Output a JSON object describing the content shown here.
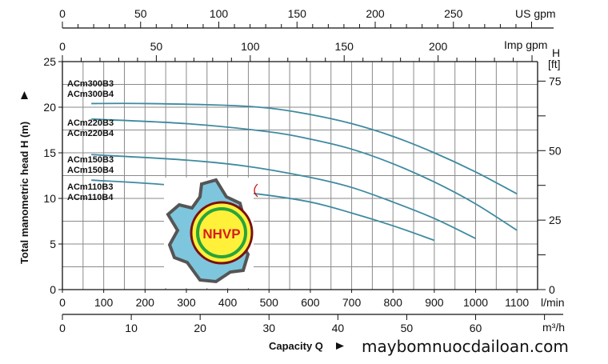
{
  "chart_data": {
    "type": "line",
    "title": "",
    "xlabel": "Capacity Q",
    "ylabel": "Total manometric head H (m)",
    "x_unit": "l/min",
    "xlim": [
      0,
      1150
    ],
    "ylim": [
      0,
      25
    ],
    "grid": true,
    "x_ticks": [
      0,
      100,
      200,
      300,
      400,
      500,
      600,
      700,
      800,
      900,
      1000,
      1100
    ],
    "y_ticks": [
      0,
      5,
      10,
      15,
      20,
      25
    ],
    "secondary_axes": {
      "us_gpm": {
        "label": "US gpm",
        "ticks": [
          0,
          50,
          100,
          150,
          200,
          250
        ]
      },
      "imp_gpm": {
        "label": "Imp gpm",
        "ticks": [
          0,
          50,
          100,
          150,
          200
        ]
      },
      "m3h": {
        "label": "m³/h",
        "ticks": [
          0,
          10,
          20,
          30,
          40,
          50,
          60
        ]
      },
      "ft": {
        "label_top": "H",
        "label_unit": "[ft]",
        "ticks": [
          0,
          25,
          50,
          75
        ]
      }
    },
    "series": [
      {
        "name": "ACm300B3 / ACm300B4",
        "labels": [
          "ACm300B3",
          "ACm300B4"
        ],
        "x": [
          70,
          200,
          400,
          500,
          600,
          700,
          800,
          900,
          1000,
          1100
        ],
        "y": [
          20.4,
          20.4,
          20.2,
          19.9,
          19.2,
          18.2,
          16.8,
          15.0,
          12.9,
          10.5
        ]
      },
      {
        "name": "ACm220B3 / ACm220B4",
        "labels": [
          "ACm220B3",
          "ACm220B4"
        ],
        "x": [
          70,
          300,
          500,
          600,
          700,
          800,
          900,
          1000,
          1100
        ],
        "y": [
          18.7,
          18.2,
          17.3,
          16.5,
          15.4,
          13.8,
          11.8,
          9.4,
          6.5
        ]
      },
      {
        "name": "ACm150B3 / ACm150B4",
        "labels": [
          "ACm150B3",
          "ACm150B4"
        ],
        "x": [
          70,
          300,
          450,
          600,
          700,
          800,
          900,
          1000
        ],
        "y": [
          14.8,
          14.2,
          13.5,
          12.3,
          11.2,
          9.6,
          7.8,
          5.6
        ]
      },
      {
        "name": "ACm110B3 / ACm110B4",
        "labels": [
          "ACm110B3",
          "ACm110B4"
        ],
        "x": [
          70,
          250,
          470,
          600,
          700,
          800,
          900
        ],
        "y": [
          12.0,
          11.5,
          10.5,
          9.6,
          8.4,
          7.0,
          5.4
        ]
      }
    ],
    "line_color": "#3f8aa0",
    "grid_color": "#8a8a8a"
  },
  "logo": {
    "text": "NHVP"
  },
  "watermark": "maybomnuocdailoan.com"
}
